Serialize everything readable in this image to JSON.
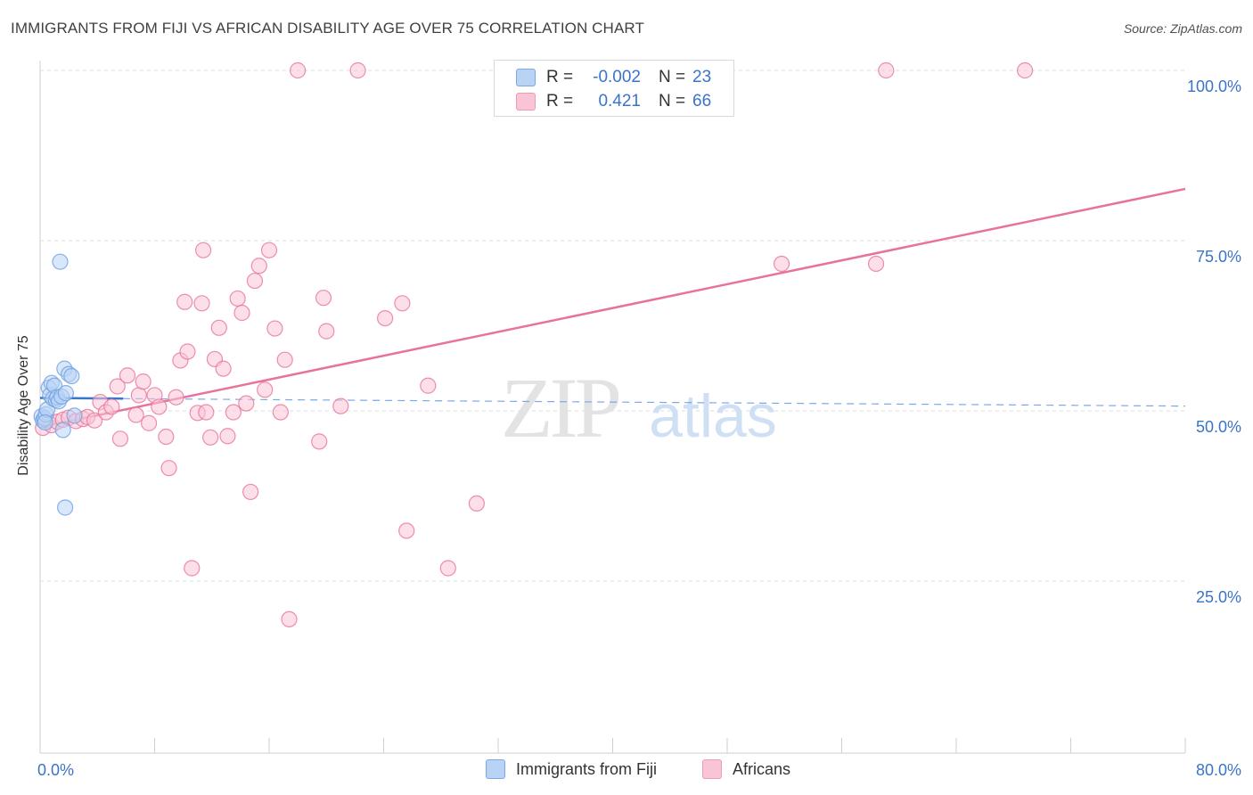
{
  "title": "IMMIGRANTS FROM FIJI VS AFRICAN DISABILITY AGE OVER 75 CORRELATION CHART",
  "source": "Source: ZipAtlas.com",
  "watermark": {
    "zip": "ZIP",
    "atlas": "atlas"
  },
  "legend": {
    "r_label": "R =",
    "n_label": "N =",
    "rows": [
      {
        "name": "Immigrants from Fiji",
        "r": "-0.002",
        "n": "23",
        "fill": "#b9d3f5",
        "stroke": "#7aa8e8"
      },
      {
        "name": "Africans",
        "r": "0.421",
        "n": "66",
        "fill": "#f9c5d5",
        "stroke": "#ef9ab6"
      }
    ]
  },
  "chart_data": {
    "type": "scatter",
    "title": "IMMIGRANTS FROM FIJI VS AFRICAN DISABILITY AGE OVER 75 CORRELATION CHART",
    "xlabel": "",
    "ylabel": "Disability Age Over 75",
    "xlim": [
      0,
      80
    ],
    "ylim": [
      0,
      102
    ],
    "x_tick_labels": [
      "0.0%",
      "80.0%"
    ],
    "y_ticks": [
      25,
      50,
      75,
      100
    ],
    "y_tick_labels": [
      "25.0%",
      "50.0%",
      "75.0%",
      "100.0%"
    ],
    "grid": true,
    "series": [
      {
        "name": "Immigrants from Fiji",
        "color": "#6fa0e0",
        "fill": "#b9d3f5",
        "points": [
          [
            0.1,
            49.2
          ],
          [
            0.2,
            48.6
          ],
          [
            0.3,
            48.9
          ],
          [
            0.4,
            49.5
          ],
          [
            0.5,
            50.2
          ],
          [
            0.6,
            53.4
          ],
          [
            0.7,
            52.3
          ],
          [
            0.8,
            54.1
          ],
          [
            0.9,
            51.8
          ],
          [
            1.0,
            53.7
          ],
          [
            1.1,
            51.6
          ],
          [
            1.2,
            52.0
          ],
          [
            1.3,
            51.4
          ],
          [
            1.4,
            71.9
          ],
          [
            1.5,
            52.1
          ],
          [
            1.6,
            47.2
          ],
          [
            1.7,
            56.2
          ],
          [
            1.75,
            35.8
          ],
          [
            1.8,
            52.6
          ],
          [
            2.0,
            55.4
          ],
          [
            2.2,
            55.1
          ],
          [
            2.4,
            49.3
          ],
          [
            0.35,
            48.3
          ]
        ],
        "trend": {
          "x": [
            0,
            5.8
          ],
          "y": [
            51.9,
            51.8
          ]
        },
        "trend_ext": {
          "x": [
            5.8,
            80
          ],
          "y": [
            51.8,
            50.7
          ]
        }
      },
      {
        "name": "Africans",
        "color": "#e8739a",
        "fill": "#f9c5d5",
        "points": [
          [
            0.2,
            47.5
          ],
          [
            0.5,
            48.6
          ],
          [
            0.8,
            47.9
          ],
          [
            1.2,
            48.4
          ],
          [
            1.6,
            48.7
          ],
          [
            2.0,
            49.0
          ],
          [
            2.5,
            48.5
          ],
          [
            3.0,
            48.8
          ],
          [
            3.3,
            49.1
          ],
          [
            3.8,
            48.6
          ],
          [
            4.2,
            51.3
          ],
          [
            4.6,
            49.8
          ],
          [
            5.0,
            50.6
          ],
          [
            5.4,
            53.6
          ],
          [
            5.6,
            45.9
          ],
          [
            6.1,
            55.2
          ],
          [
            6.7,
            49.4
          ],
          [
            6.9,
            52.3
          ],
          [
            7.2,
            54.3
          ],
          [
            7.6,
            48.2
          ],
          [
            8.0,
            52.3
          ],
          [
            8.3,
            50.6
          ],
          [
            8.8,
            46.2
          ],
          [
            9.0,
            41.6
          ],
          [
            9.5,
            52.0
          ],
          [
            9.8,
            57.4
          ],
          [
            10.1,
            66.0
          ],
          [
            10.3,
            58.7
          ],
          [
            10.6,
            26.9
          ],
          [
            11.0,
            49.7
          ],
          [
            11.3,
            65.8
          ],
          [
            11.6,
            49.8
          ],
          [
            11.9,
            46.1
          ],
          [
            12.2,
            57.6
          ],
          [
            12.5,
            62.2
          ],
          [
            12.8,
            56.2
          ],
          [
            13.1,
            46.3
          ],
          [
            13.5,
            49.8
          ],
          [
            13.8,
            66.5
          ],
          [
            14.1,
            64.4
          ],
          [
            14.4,
            51.1
          ],
          [
            14.7,
            38.1
          ],
          [
            15.0,
            69.1
          ],
          [
            15.3,
            71.3
          ],
          [
            15.7,
            53.1
          ],
          [
            16.0,
            73.6
          ],
          [
            16.4,
            62.1
          ],
          [
            16.8,
            49.8
          ],
          [
            17.1,
            57.5
          ],
          [
            17.4,
            19.4
          ],
          [
            18.0,
            100.0
          ],
          [
            19.5,
            45.5
          ],
          [
            19.8,
            66.6
          ],
          [
            20.0,
            61.7
          ],
          [
            21.0,
            50.7
          ],
          [
            22.2,
            100.0
          ],
          [
            24.1,
            63.6
          ],
          [
            25.3,
            65.8
          ],
          [
            25.6,
            32.4
          ],
          [
            27.1,
            53.7
          ],
          [
            28.5,
            26.9
          ],
          [
            30.5,
            36.4
          ],
          [
            51.8,
            71.6
          ],
          [
            58.4,
            71.6
          ],
          [
            59.1,
            100.0
          ],
          [
            68.8,
            100.0
          ],
          [
            11.4,
            73.6
          ]
        ],
        "trend": {
          "x": [
            0,
            80
          ],
          "y": [
            47.6,
            82.6
          ]
        }
      }
    ]
  }
}
